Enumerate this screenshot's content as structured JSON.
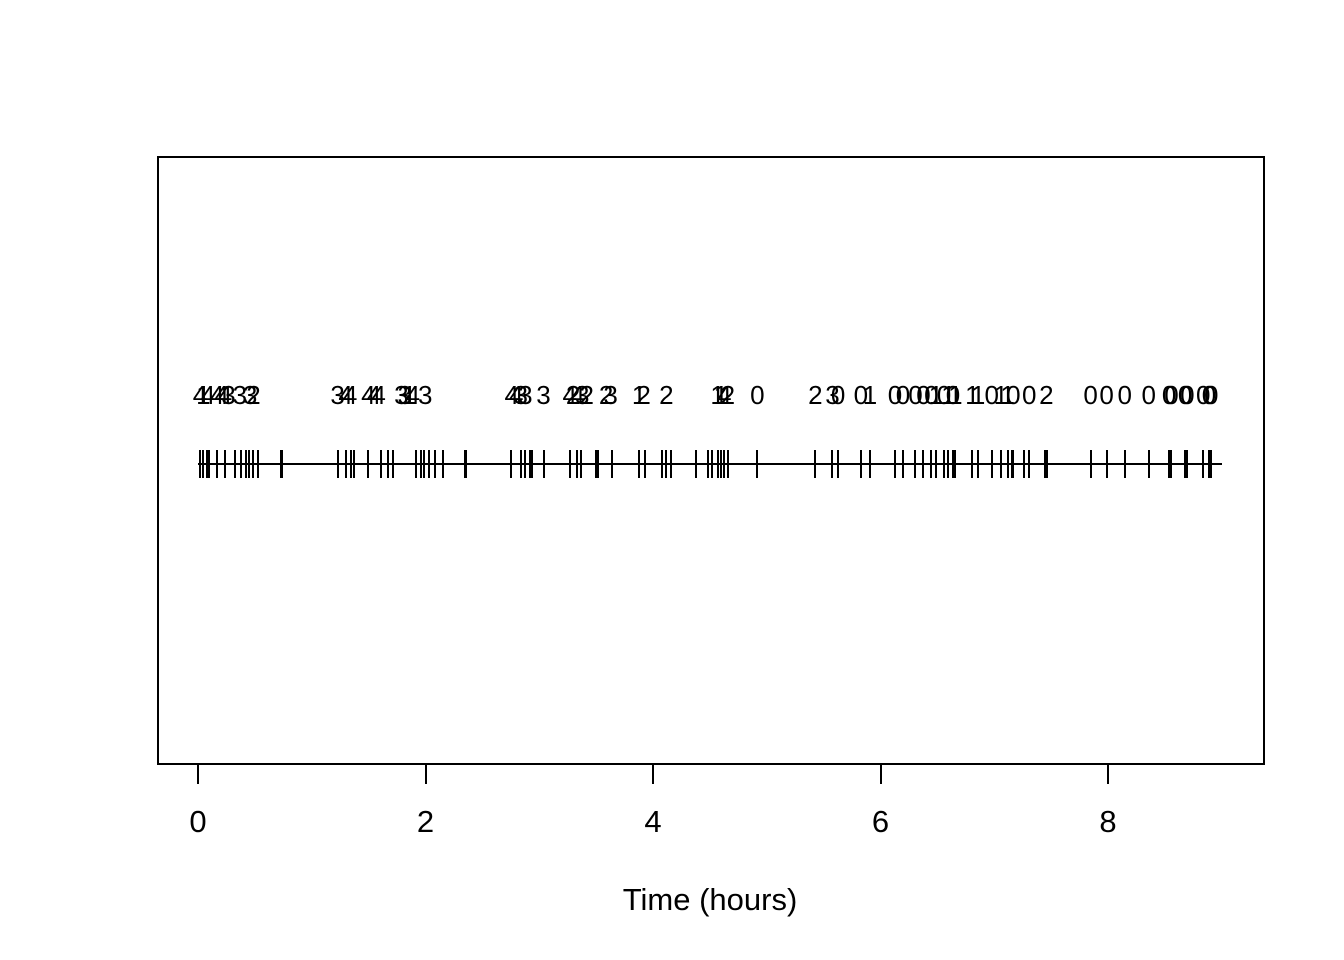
{
  "figure": {
    "background_color": "#ffffff",
    "ink_color": "#000000"
  },
  "chart_data": {
    "type": "scatter",
    "subtype": "event-rug-plot",
    "title": "",
    "xlabel": "Time (hours)",
    "ylabel": "",
    "xlim": [
      -0.36,
      9.36
    ],
    "grid": "off",
    "legend": "none",
    "x_ticks": [
      {
        "value": 0,
        "label": "0"
      },
      {
        "value": 2,
        "label": "2"
      },
      {
        "value": 4,
        "label": "4"
      },
      {
        "value": 6,
        "label": "6"
      },
      {
        "value": 8,
        "label": "8"
      }
    ],
    "events": [
      {
        "t": 0.0,
        "n": "4"
      },
      {
        "t": 0.03,
        "n": "1"
      },
      {
        "t": 0.07,
        "n": "4"
      },
      {
        "t": 0.15,
        "n": "4"
      },
      {
        "t": 0.19,
        "n": "4"
      },
      {
        "t": 0.22,
        "n": "4"
      },
      {
        "t": 0.25,
        "n": "3"
      },
      {
        "t": 0.35,
        "n": "3"
      },
      {
        "t": 0.44,
        "n": "3"
      },
      {
        "t": 0.47,
        "n": "2"
      },
      {
        "t": 1.21,
        "n": "3"
      },
      {
        "t": 1.28,
        "n": "4"
      },
      {
        "t": 1.32,
        "n": "4"
      },
      {
        "t": 1.48,
        "n": "4"
      },
      {
        "t": 1.53,
        "n": "4"
      },
      {
        "t": 1.57,
        "n": "4"
      },
      {
        "t": 1.77,
        "n": "3"
      },
      {
        "t": 1.8,
        "n": "3"
      },
      {
        "t": 1.84,
        "n": "1"
      },
      {
        "t": 1.87,
        "n": "4"
      },
      {
        "t": 1.98,
        "n": "3"
      },
      {
        "t": 2.74,
        "n": "4"
      },
      {
        "t": 2.78,
        "n": "4"
      },
      {
        "t": 2.82,
        "n": "3"
      },
      {
        "t": 2.86,
        "n": "3"
      },
      {
        "t": 3.02,
        "n": "3"
      },
      {
        "t": 3.25,
        "n": "4"
      },
      {
        "t": 3.28,
        "n": "2"
      },
      {
        "t": 3.32,
        "n": "4"
      },
      {
        "t": 3.36,
        "n": "3"
      },
      {
        "t": 3.4,
        "n": "2"
      },
      {
        "t": 3.57,
        "n": "2"
      },
      {
        "t": 3.61,
        "n": "3"
      },
      {
        "t": 3.86,
        "n": "1"
      },
      {
        "t": 3.9,
        "n": "2"
      },
      {
        "t": 4.1,
        "n": "2"
      },
      {
        "t": 4.55,
        "n": "1"
      },
      {
        "t": 4.58,
        "n": "1"
      },
      {
        "t": 4.61,
        "n": "4"
      },
      {
        "t": 4.64,
        "n": "2"
      },
      {
        "t": 4.9,
        "n": "0"
      },
      {
        "t": 5.41,
        "n": "2"
      },
      {
        "t": 5.56,
        "n": "3"
      },
      {
        "t": 5.61,
        "n": "0"
      },
      {
        "t": 5.81,
        "n": "0"
      },
      {
        "t": 5.89,
        "n": "1"
      },
      {
        "t": 6.11,
        "n": "0"
      },
      {
        "t": 6.18,
        "n": "0"
      },
      {
        "t": 6.29,
        "n": "0"
      },
      {
        "t": 6.36,
        "n": "0"
      },
      {
        "t": 6.43,
        "n": "0"
      },
      {
        "t": 6.47,
        "n": "1"
      },
      {
        "t": 6.54,
        "n": "0"
      },
      {
        "t": 6.58,
        "n": "1"
      },
      {
        "t": 6.62,
        "n": "0"
      },
      {
        "t": 6.64,
        "n": "1"
      },
      {
        "t": 6.79,
        "n": "1"
      },
      {
        "t": 6.84,
        "n": "1"
      },
      {
        "t": 6.96,
        "n": "0"
      },
      {
        "t": 7.04,
        "n": "1"
      },
      {
        "t": 7.1,
        "n": "1"
      },
      {
        "t": 7.15,
        "n": "0"
      },
      {
        "t": 7.29,
        "n": "0"
      },
      {
        "t": 7.44,
        "n": "2"
      },
      {
        "t": 7.83,
        "n": "0"
      },
      {
        "t": 7.97,
        "n": "0"
      },
      {
        "t": 8.13,
        "n": "0"
      },
      {
        "t": 8.34,
        "n": "0"
      },
      {
        "t": 8.52,
        "n": "0"
      },
      {
        "t": 8.54,
        "n": "0"
      },
      {
        "t": 8.66,
        "n": "0"
      },
      {
        "t": 8.68,
        "n": "0"
      },
      {
        "t": 8.82,
        "n": "0"
      },
      {
        "t": 8.87,
        "n": "0"
      },
      {
        "t": 8.89,
        "n": "0"
      }
    ],
    "rug_times": [
      0.0,
      0.03,
      0.06,
      0.08,
      0.15,
      0.22,
      0.31,
      0.36,
      0.4,
      0.43,
      0.47,
      0.51,
      0.71,
      0.72,
      1.21,
      1.28,
      1.33,
      1.35,
      1.48,
      1.59,
      1.65,
      1.7,
      1.9,
      1.94,
      1.97,
      2.01,
      2.07,
      2.14,
      2.33,
      2.34,
      2.73,
      2.82,
      2.86,
      2.9,
      2.92,
      3.02,
      3.25,
      3.31,
      3.35,
      3.48,
      3.5,
      3.62,
      3.86,
      3.91,
      4.06,
      4.1,
      4.14,
      4.36,
      4.47,
      4.5,
      4.55,
      4.58,
      4.61,
      4.64,
      4.9,
      5.41,
      5.56,
      5.61,
      5.81,
      5.89,
      6.11,
      6.18,
      6.29,
      6.36,
      6.43,
      6.47,
      6.54,
      6.58,
      6.62,
      6.64,
      6.79,
      6.84,
      6.96,
      7.04,
      7.1,
      7.14,
      7.15,
      7.24,
      7.29,
      7.43,
      7.45,
      7.83,
      7.97,
      8.13,
      8.34,
      8.52,
      8.54,
      8.66,
      8.68,
      8.82,
      8.87,
      8.89
    ]
  }
}
